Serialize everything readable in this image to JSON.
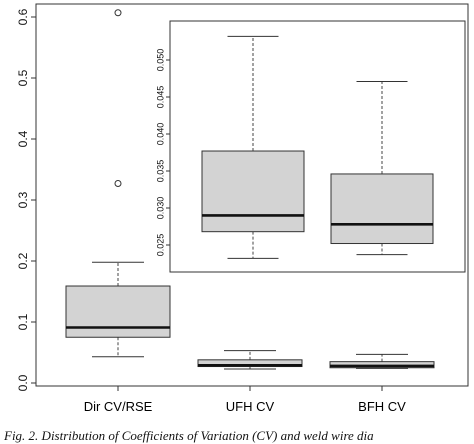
{
  "chart_data": [
    {
      "type": "boxplot",
      "categories": [
        "Dir CV/RSE",
        "UFH CV",
        "BFH CV"
      ],
      "y_ticks": [
        "0.0",
        "0.1",
        "0.2",
        "0.3",
        "0.4",
        "0.5",
        "0.6"
      ],
      "ylim": [
        0,
        0.62
      ],
      "boxes": [
        {
          "whisker_low": 0.043,
          "q1": 0.075,
          "median": 0.091,
          "q3": 0.159,
          "whisker_high": 0.198,
          "outliers": [
            0.327,
            0.607
          ]
        },
        {
          "whisker_low": 0.023,
          "q1": 0.027,
          "median": 0.029,
          "q3": 0.038,
          "whisker_high": 0.053,
          "outliers": []
        },
        {
          "whisker_low": 0.024,
          "q1": 0.025,
          "median": 0.028,
          "q3": 0.035,
          "whisker_high": 0.047,
          "outliers": []
        }
      ],
      "box_fill": "#d3d3d3",
      "grid": false
    },
    {
      "type": "boxplot",
      "inset": true,
      "categories": [
        "UFH CV",
        "BFH CV"
      ],
      "y_ticks": [
        "0.025",
        "0.030",
        "0.035",
        "0.040",
        "0.045",
        "0.050"
      ],
      "ylim": [
        0.0225,
        0.0535
      ],
      "boxes": [
        {
          "whisker_low": 0.0232,
          "q1": 0.0268,
          "median": 0.029,
          "q3": 0.0377,
          "whisker_high": 0.0532
        },
        {
          "whisker_low": 0.0237,
          "q1": 0.0252,
          "median": 0.0278,
          "q3": 0.0346,
          "whisker_high": 0.0471
        }
      ],
      "box_fill": "#d3d3d3",
      "grid": false
    }
  ],
  "caption": "Fig. 2. Distribution of Coefficients of Variation (CV) and weld wire dia"
}
